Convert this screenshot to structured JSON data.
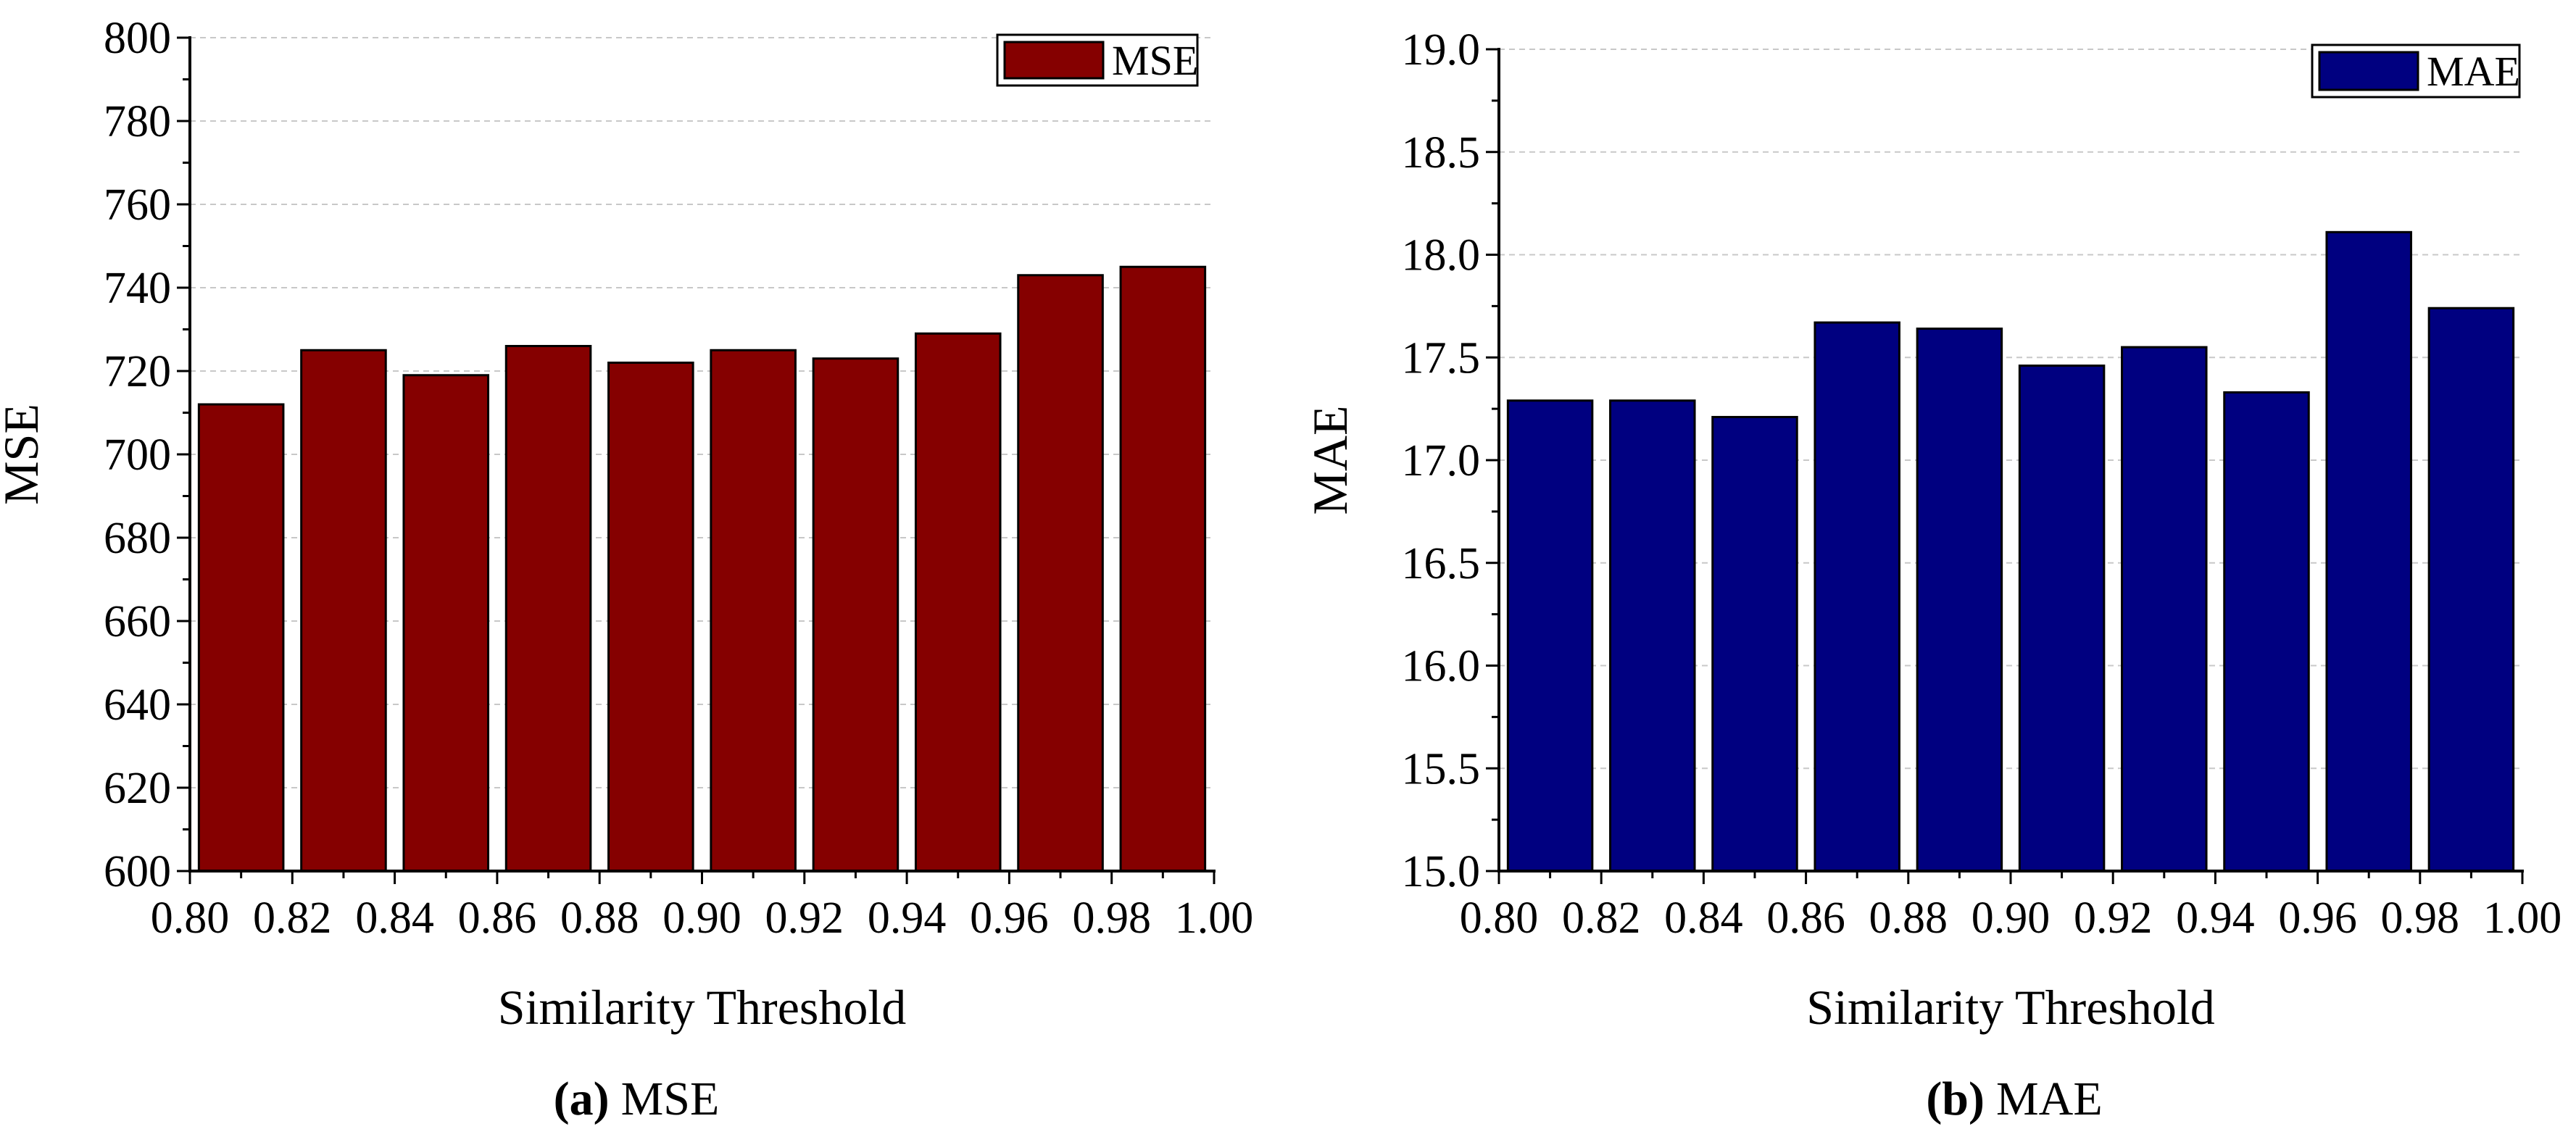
{
  "chart_data": [
    {
      "type": "bar",
      "panel": "a",
      "title": "",
      "xlabel": "Similarity Threshold",
      "ylabel": "MSE",
      "xlim": [
        0.8,
        1.0
      ],
      "ylim": [
        600,
        800
      ],
      "xticks": [
        "0.80",
        "0.82",
        "0.84",
        "0.86",
        "0.88",
        "0.90",
        "0.92",
        "0.94",
        "0.96",
        "0.98",
        "1.00"
      ],
      "yticks": [
        "600",
        "620",
        "640",
        "660",
        "680",
        "700",
        "720",
        "740",
        "760",
        "780",
        "800"
      ],
      "x": [
        0.81,
        0.83,
        0.85,
        0.87,
        0.89,
        0.91,
        0.93,
        0.95,
        0.97,
        0.99
      ],
      "series": [
        {
          "name": "MSE",
          "color": "#850000",
          "values": [
            712,
            725,
            719,
            726,
            722,
            725,
            723,
            729,
            743,
            745
          ]
        }
      ],
      "legend": "top-right",
      "grid": true,
      "caption_letter": "(a)",
      "caption_text": "MSE"
    },
    {
      "type": "bar",
      "panel": "b",
      "title": "",
      "xlabel": "Similarity Threshold",
      "ylabel": "MAE",
      "xlim": [
        0.8,
        1.0
      ],
      "ylim": [
        15.0,
        19.0
      ],
      "xticks": [
        "0.80",
        "0.82",
        "0.84",
        "0.86",
        "0.88",
        "0.90",
        "0.92",
        "0.94",
        "0.96",
        "0.98",
        "1.00"
      ],
      "yticks": [
        "15.0",
        "15.5",
        "16.0",
        "16.5",
        "17.0",
        "17.5",
        "18.0",
        "18.5",
        "19.0"
      ],
      "x": [
        0.81,
        0.83,
        0.85,
        0.87,
        0.89,
        0.91,
        0.93,
        0.95,
        0.97,
        0.99
      ],
      "series": [
        {
          "name": "MAE",
          "color": "#000080",
          "values": [
            17.29,
            17.29,
            17.21,
            17.67,
            17.64,
            17.46,
            17.55,
            17.33,
            18.11,
            17.74
          ]
        }
      ],
      "legend": "top-right",
      "grid": true,
      "caption_letter": "(b)",
      "caption_text": "MAE"
    }
  ]
}
